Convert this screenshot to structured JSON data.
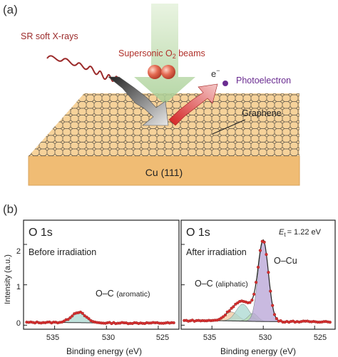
{
  "panel_a": {
    "label": "(a)",
    "xray_label": "SR soft X-rays",
    "beam_label_main": "Supersonic O",
    "beam_label_sub": "2",
    "beam_label_tail": " beams",
    "electron_symbol": "e",
    "electron_sup": "−",
    "photoelectron_label": "Photoelectron",
    "graphene_label": "Graphene",
    "substrate_label": "Cu (111)",
    "colors": {
      "xray": "#9b2a2a",
      "beam": "#b8d9a8",
      "photoelectron": "#6a2c91",
      "substrate": "#f2c27e",
      "graphene": "#3a3a3a"
    }
  },
  "panel_b": {
    "label": "(b)",
    "y_axis_label": "Intensity (a.u.)",
    "y_ticks": [
      "0",
      "1",
      "2"
    ],
    "left": {
      "title": "O 1s",
      "subtitle": "Before irradiation",
      "annotation_main": "O–C",
      "annotation_small": "(aromatic)",
      "x_ticks": [
        "535",
        "530",
        "525"
      ],
      "x_label": "Binding energy (eV)"
    },
    "right": {
      "title": "O 1s",
      "subtitle": "After irradiation",
      "energy_main": "E",
      "energy_sub": "t",
      "energy_value": "= 1.22 eV",
      "annotation_oc_main": "O–C",
      "annotation_oc_small": "(aliphatic)",
      "annotation_ocu": "O–Cu",
      "x_ticks": [
        "535",
        "530",
        "525"
      ],
      "x_label": "Binding energy (eV)"
    }
  },
  "chart_data": [
    {
      "type": "line",
      "title": "O 1s",
      "subtitle": "Before irradiation",
      "xlabel": "Binding energy (eV)",
      "ylabel": "Intensity (a.u.)",
      "xlim": [
        538,
        523
      ],
      "ylim": [
        -0.1,
        2.6
      ],
      "x_reversed": true,
      "components": [
        {
          "name": "O–C (aromatic)",
          "center": 532.7,
          "height": 0.26,
          "width": 1.5,
          "color": "#a9d8d0"
        }
      ],
      "background": 0.06,
      "grid": false
    },
    {
      "type": "line",
      "title": "O 1s",
      "subtitle": "After irradiation",
      "xlabel": "Binding energy (eV)",
      "ylabel": "Intensity (a.u.)",
      "xlim": [
        538,
        523
      ],
      "ylim": [
        -0.1,
        2.6
      ],
      "x_reversed": true,
      "components": [
        {
          "name": "O–C (aliphatic) shoulder",
          "center": 533.1,
          "height": 0.22,
          "width": 1.4,
          "color": "#f2c9a0"
        },
        {
          "name": "O–C (aliphatic)",
          "center": 532.0,
          "height": 0.42,
          "width": 1.4,
          "color": "#a9d8d0"
        },
        {
          "name": "O–C minor",
          "center": 531.0,
          "height": 0.2,
          "width": 1.0,
          "color": "#b9dcb0"
        },
        {
          "name": "O–Cu",
          "center": 530.0,
          "height": 2.0,
          "width": 1.1,
          "color": "#b7a3d6"
        }
      ],
      "background": 0.1,
      "grid": false
    }
  ]
}
